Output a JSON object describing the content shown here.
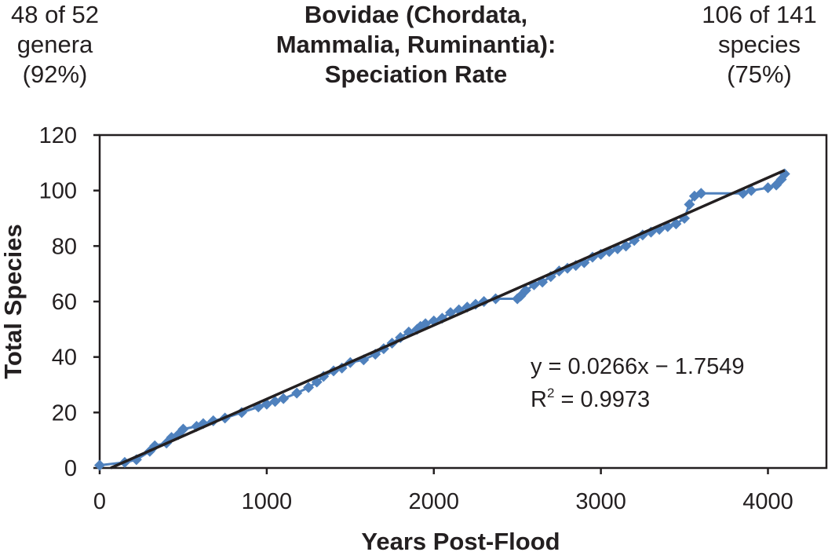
{
  "header": {
    "left_lines": [
      "48 of 52",
      "genera",
      "(92%)"
    ],
    "title_lines": [
      "Bovidae (Chordata,",
      "Mammalia, Ruminantia):",
      "Speciation Rate"
    ],
    "right_lines": [
      "106 of 141",
      "species",
      "(75%)"
    ]
  },
  "chart_data": {
    "type": "line",
    "title": "Bovidae (Chordata, Mammalia, Ruminantia): Speciation Rate",
    "xlabel": "Years Post-Flood",
    "ylabel": "Total Species",
    "xlim": [
      0,
      4350
    ],
    "ylim": [
      0,
      120
    ],
    "x_ticks": [
      0,
      1000,
      2000,
      3000,
      4000
    ],
    "y_ticks": [
      0,
      20,
      40,
      60,
      80,
      100,
      120
    ],
    "grid": false,
    "series_color": "#4f81bd",
    "trend_color": "#231f20",
    "series": [
      {
        "x": [
          0,
          150,
          220,
          300,
          330,
          400,
          430,
          470,
          500,
          580,
          620,
          680,
          750,
          850,
          950,
          1000,
          1050,
          1100,
          1180,
          1250,
          1300,
          1340,
          1400,
          1450,
          1500,
          1580,
          1650,
          1700,
          1750,
          1800,
          1850,
          1900,
          1920,
          1950,
          2000,
          2050,
          2100,
          2150,
          2200,
          2250,
          2300,
          2370,
          2500,
          2520,
          2550,
          2600,
          2650,
          2700,
          2750,
          2800,
          2850,
          2900,
          2950,
          3000,
          3050,
          3100,
          3150,
          3200,
          3250,
          3300,
          3350,
          3400,
          3450,
          3500,
          3530,
          3560,
          3600,
          3850,
          3900,
          4000,
          4050,
          4080,
          4100
        ],
        "y": [
          1,
          2,
          3,
          6,
          8,
          9,
          11,
          12,
          14,
          15,
          16,
          17,
          18,
          20,
          22,
          23,
          24,
          25,
          27,
          29,
          31,
          33,
          35,
          36,
          38,
          39,
          41,
          43,
          45,
          47,
          49,
          50,
          51,
          52,
          53,
          54,
          56,
          57,
          58,
          59,
          60,
          61,
          61,
          62,
          64,
          66,
          67,
          69,
          71,
          72,
          73,
          74,
          76,
          77,
          78,
          79,
          80,
          82,
          84,
          85,
          86,
          87,
          88,
          90,
          95,
          98,
          99,
          99,
          100,
          101,
          102,
          104,
          106
        ]
      }
    ],
    "trendline": {
      "slope": 0.0266,
      "intercept": -1.7549,
      "x_range": [
        66,
        4100
      ]
    },
    "annotations": {
      "equation": "y = 0.0266x − 1.7549",
      "r2_prefix": "R",
      "r2_sup": "2",
      "r2_value": " = 0.9973"
    }
  }
}
